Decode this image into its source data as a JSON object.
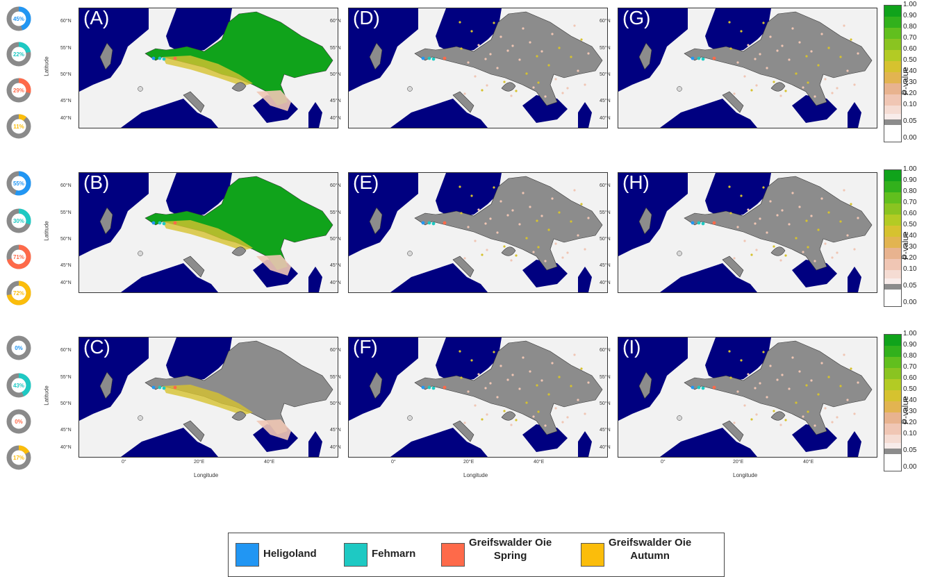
{
  "panels": [
    {
      "label": "(A)",
      "row": 0,
      "col": 0,
      "type": "suitability"
    },
    {
      "label": "(D)",
      "row": 0,
      "col": 1,
      "type": "pvalue"
    },
    {
      "label": "(G)",
      "row": 0,
      "col": 2,
      "type": "pvalue"
    },
    {
      "label": "(B)",
      "row": 1,
      "col": 0,
      "type": "suitability"
    },
    {
      "label": "(E)",
      "row": 1,
      "col": 1,
      "type": "pvalue"
    },
    {
      "label": "(H)",
      "row": 1,
      "col": 2,
      "type": "pvalue"
    },
    {
      "label": "(C)",
      "row": 2,
      "col": 0,
      "type": "suitability"
    },
    {
      "label": "(F)",
      "row": 2,
      "col": 1,
      "type": "pvalue"
    },
    {
      "label": "(I)",
      "row": 2,
      "col": 2,
      "type": "pvalue"
    }
  ],
  "axes": {
    "ylabel": "Latitude",
    "xlabel": "Longitude",
    "lat_ticks": [
      "60°N",
      "55°N",
      "50°N",
      "45°N",
      "40°N"
    ],
    "lon_ticks": [
      "0°",
      "20°E",
      "40°E"
    ]
  },
  "donut_rows": [
    [
      {
        "value": 45,
        "label": "45%",
        "color": "#2196f3"
      },
      {
        "value": 22,
        "label": "22%",
        "color": "#1ec9c3"
      },
      {
        "value": 29,
        "label": "29%",
        "color": "#fe6a4a"
      },
      {
        "value": 11,
        "label": "11%",
        "color": "#fbbd0b"
      }
    ],
    [
      {
        "value": 55,
        "label": "55%",
        "color": "#2196f3"
      },
      {
        "value": 30,
        "label": "30%",
        "color": "#1ec9c3"
      },
      {
        "value": 71,
        "label": "71%",
        "color": "#fe6a4a"
      },
      {
        "value": 72,
        "label": "72%",
        "color": "#fbbd0b"
      }
    ],
    [
      {
        "value": 0,
        "label": "0%",
        "color": "#2196f3"
      },
      {
        "value": 43,
        "label": "43%",
        "color": "#1ec9c3"
      },
      {
        "value": 0,
        "label": "0%",
        "color": "#fe6a4a"
      },
      {
        "value": 17,
        "label": "17%",
        "color": "#fbbd0b"
      }
    ]
  ],
  "colorbar": {
    "title": "P-value",
    "ticks": [
      "1.00",
      "0.90",
      "0.80",
      "0.70",
      "0.60",
      "0.50",
      "0.40",
      "0.30",
      "0.20",
      "0.10",
      "0.05",
      "0.00"
    ],
    "colors": [
      "#10a31b",
      "#32b11c",
      "#61bf1e",
      "#8ac421",
      "#b3cb24",
      "#d6c22f",
      "#e2b451",
      "#e8b38f",
      "#f0c6b4",
      "#f5dcd3",
      "#f8ecea",
      "#8c8c8c"
    ]
  },
  "legend": {
    "items": [
      {
        "label": "Heligoland",
        "color": "#2196f3"
      },
      {
        "label": "Fehmarn",
        "color": "#1ec9c3"
      },
      {
        "label": "Greifswalder Oie\nSpring",
        "color": "#fe6a4a"
      },
      {
        "label": "Greifswalder Oie\nAutumn",
        "color": "#fbbd0b"
      }
    ]
  },
  "map_colors": {
    "sea": "#000080",
    "land": "#f2f2f2",
    "range": "#8c8c8c",
    "high": "#10a31b",
    "mid": "#d6c22f",
    "low": "#f0c6b4"
  }
}
